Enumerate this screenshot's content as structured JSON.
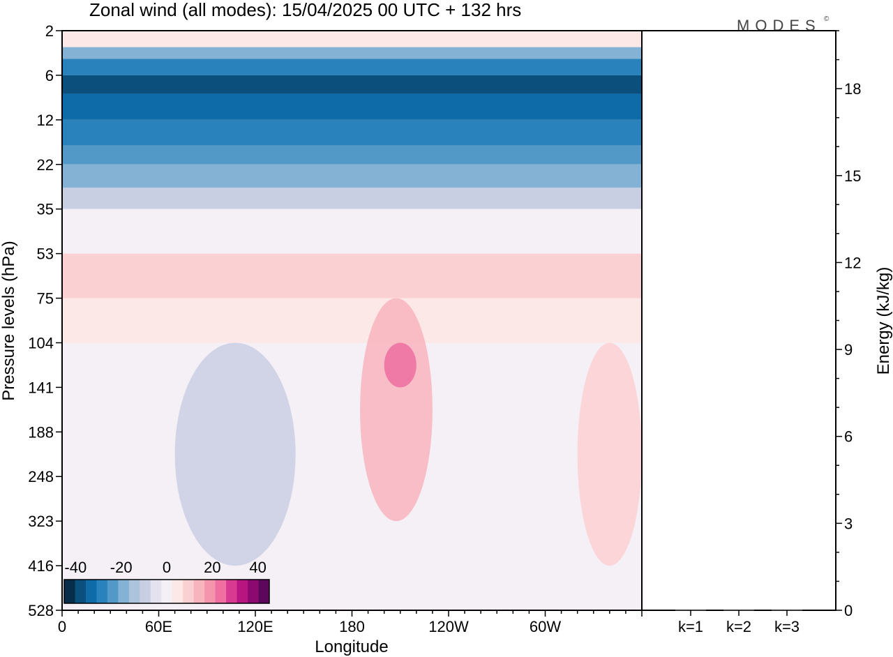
{
  "brand": "MODES",
  "brand_mark": "©",
  "chart_data": [
    {
      "type": "heatmap",
      "title": "Zonal wind (all modes):  15/04/2025  00 UTC  + 132 hrs",
      "xlabel": "Longitude",
      "ylabel": "Pressure levels (hPa)",
      "x_ticks": [
        "0",
        "60E",
        "120E",
        "180",
        "120W",
        "60W"
      ],
      "x_tick_lon": [
        0,
        60,
        120,
        180,
        240,
        300
      ],
      "xlim": [
        0,
        360
      ],
      "y_ticks": [
        "2",
        "6",
        "12",
        "22",
        "35",
        "53",
        "75",
        "104",
        "141",
        "188",
        "248",
        "323",
        "416",
        "528"
      ],
      "colorbar": {
        "labels": [
          "-40",
          "-20",
          "0",
          "20",
          "40"
        ],
        "levels": [
          -45,
          -40,
          -35,
          -30,
          -25,
          -20,
          -15,
          -10,
          -5,
          0,
          5,
          10,
          15,
          20,
          25,
          30,
          35,
          40,
          45
        ],
        "colors": [
          "#072d4b",
          "#0b4f7c",
          "#0f6ba8",
          "#2a82bc",
          "#5399c7",
          "#84b2d4",
          "#acc3dc",
          "#c9cfe3",
          "#e5e2ef",
          "#f4f0f6",
          "#fde8e8",
          "#fbd0d2",
          "#f8b4bd",
          "#f495ad",
          "#ee6fa0",
          "#d93a91",
          "#b81580",
          "#8c0a6f",
          "#5c075c"
        ]
      },
      "bands": [
        {
          "pressure_hPa": "2",
          "zonal_wind": 5
        },
        {
          "pressure_hPa": "3",
          "zonal_wind": -20
        },
        {
          "pressure_hPa": "4",
          "zonal_wind": -30
        },
        {
          "pressure_hPa": "6",
          "zonal_wind": -40
        },
        {
          "pressure_hPa": "8",
          "zonal_wind": -35
        },
        {
          "pressure_hPa": "12",
          "zonal_wind": -30
        },
        {
          "pressure_hPa": "17",
          "zonal_wind": -25
        },
        {
          "pressure_hPa": "22",
          "zonal_wind": -20
        },
        {
          "pressure_hPa": "28",
          "zonal_wind": -10
        },
        {
          "pressure_hPa": "35",
          "zonal_wind": 0
        },
        {
          "pressure_hPa": "53",
          "zonal_wind": 10
        },
        {
          "pressure_hPa": "75",
          "zonal_wind": 5
        },
        {
          "pressure_hPa": "104",
          "zonal_wind": 0
        },
        {
          "pressure_hPa": "528",
          "zonal_wind": 0
        }
      ],
      "features": [
        {
          "lon_range": [
            70,
            145
          ],
          "pressure_range": [
            "104",
            "416"
          ],
          "zonal_wind": -10
        },
        {
          "lon_range": [
            185,
            230
          ],
          "pressure_range": [
            "75",
            "323"
          ],
          "zonal_wind": 15
        },
        {
          "lon_range": [
            200,
            220
          ],
          "pressure_range": [
            "104",
            "141"
          ],
          "zonal_wind": 25
        },
        {
          "lon_range": [
            320,
            360
          ],
          "pressure_range": [
            "104",
            "416"
          ],
          "zonal_wind": 10
        }
      ]
    },
    {
      "type": "bar",
      "ylabel": "Energy (kJ/kg)",
      "categories": [
        "k=1",
        "k=2",
        "k=3"
      ],
      "values": [
        0,
        0,
        0
      ],
      "ylim": [
        0,
        20
      ],
      "y_ticks": [
        "0",
        "3",
        "6",
        "9",
        "12",
        "15",
        "18"
      ]
    }
  ]
}
